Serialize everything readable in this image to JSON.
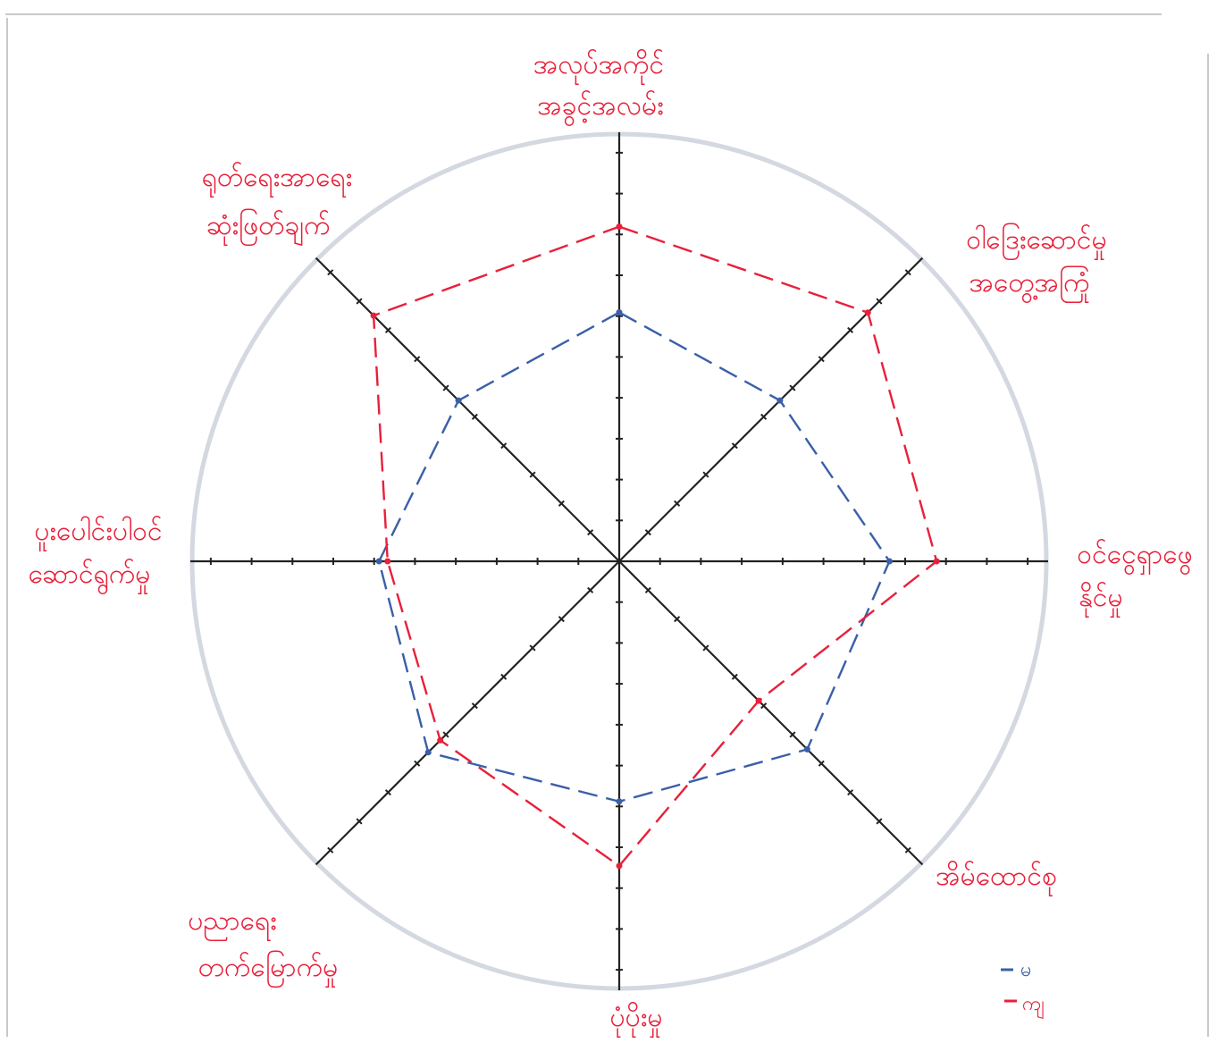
{
  "chart_data": {
    "type": "radar",
    "title": "",
    "axes": [
      {
        "line1": "အလုပ်အကိုင်",
        "line2": "အခွင့်အလမ်း"
      },
      {
        "line1": "ဝါဒြေးဆောင်မှု",
        "line2": "အတွေ့အကြုံ"
      },
      {
        "line1": "ဝင်ငွေရှာဖွေ",
        "line2": "နိုင်မှု"
      },
      {
        "line1": "အိမ်ထောင်စု",
        "line2": ""
      },
      {
        "line1": "ပုံပိုးမှု",
        "line2": ""
      },
      {
        "line1": "ပညာရေး",
        "line2": "တက်မြောက်မှု"
      },
      {
        "line1": "ပူးပေါင်းပါဝင်",
        "line2": "ဆောင်ရွက်မှု"
      },
      {
        "line1": "ရုတ်ရေးအာရေး",
        "line2": "ဆုံးဖြတ်ချက်"
      }
    ],
    "rmax": 10,
    "ticks_per_axis": 10,
    "series": [
      {
        "name": "မ",
        "color": "#3a5fa8",
        "values": [
          5.8,
          5.3,
          6.3,
          6.2,
          5.6,
          6.3,
          5.6,
          5.3
        ]
      },
      {
        "name": "ကျ",
        "color": "#e8203a",
        "values": [
          7.8,
          8.2,
          7.4,
          4.6,
          7.1,
          5.9,
          5.4,
          8.1
        ]
      }
    ],
    "legend_position": "bottom-right"
  }
}
